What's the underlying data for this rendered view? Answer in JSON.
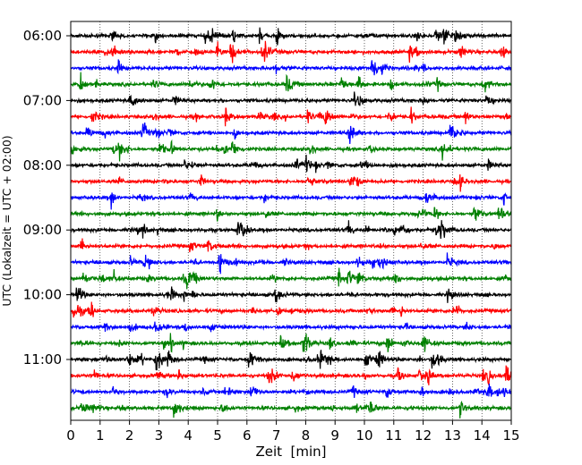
{
  "chart_data": {
    "type": "line",
    "title": "",
    "xlabel": "Zeit  [min]",
    "ylabel": "UTC (Lokalzeit = UTC + 02:00)",
    "xlim": [
      0,
      15
    ],
    "x_ticks": [
      "0",
      "1",
      "2",
      "3",
      "4",
      "5",
      "6",
      "7",
      "8",
      "9",
      "10",
      "11",
      "12",
      "13",
      "14",
      "15"
    ],
    "y_ticks": [
      "06:00",
      "07:00",
      "08:00",
      "09:00",
      "10:00",
      "11:00"
    ],
    "trace_start_times_utc": [
      "06:00",
      "06:15",
      "06:30",
      "06:45",
      "07:00",
      "07:15",
      "07:30",
      "07:45",
      "08:00",
      "08:15",
      "08:30",
      "08:45",
      "09:00",
      "09:15",
      "09:30",
      "09:45",
      "10:00",
      "10:15",
      "10:30",
      "10:45",
      "11:00",
      "11:15",
      "11:30",
      "11:45"
    ],
    "trace_minutes": 15,
    "color_cycle": [
      "#000000",
      "#ff0000",
      "#0000ff",
      "#008000"
    ],
    "vertical_grid": "dotted",
    "legend": "none"
  }
}
